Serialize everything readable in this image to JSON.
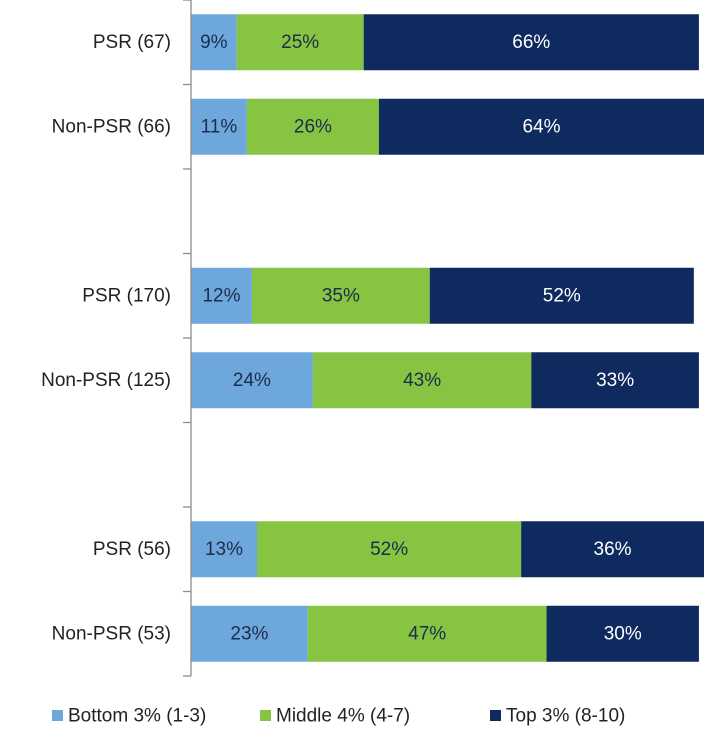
{
  "chart_data": {
    "type": "stacked_barh",
    "categories": [
      "PSR (67)",
      "Non-PSR (66)",
      null,
      "PSR (170)",
      "Non-PSR (125)",
      null,
      "PSR (56)",
      "Non-PSR (53)"
    ],
    "series": [
      {
        "name": "Bottom 3% (1-3)",
        "color": "#6ea7dc",
        "values": [
          9,
          11,
          null,
          12,
          24,
          null,
          13,
          23
        ],
        "value_labels": [
          "9%",
          "11%",
          null,
          "12%",
          "24%",
          null,
          "13%",
          "23%"
        ]
      },
      {
        "name": "Middle 4% (4-7)",
        "color": "#86c441",
        "values": [
          25,
          26,
          null,
          35,
          43,
          null,
          52,
          47
        ],
        "value_labels": [
          "25%",
          "26%",
          null,
          "35%",
          "43%",
          null,
          "52%",
          "47%"
        ]
      },
      {
        "name": "Top 3% (8-10)",
        "color": "#0e2a5e",
        "values": [
          66,
          64,
          null,
          52,
          33,
          null,
          36,
          30
        ],
        "value_labels": [
          "66%",
          "64%",
          null,
          "52%",
          "33%",
          null,
          "36%",
          "30%"
        ]
      }
    ],
    "xlim": [
      0,
      101
    ],
    "legend": "bottom"
  }
}
